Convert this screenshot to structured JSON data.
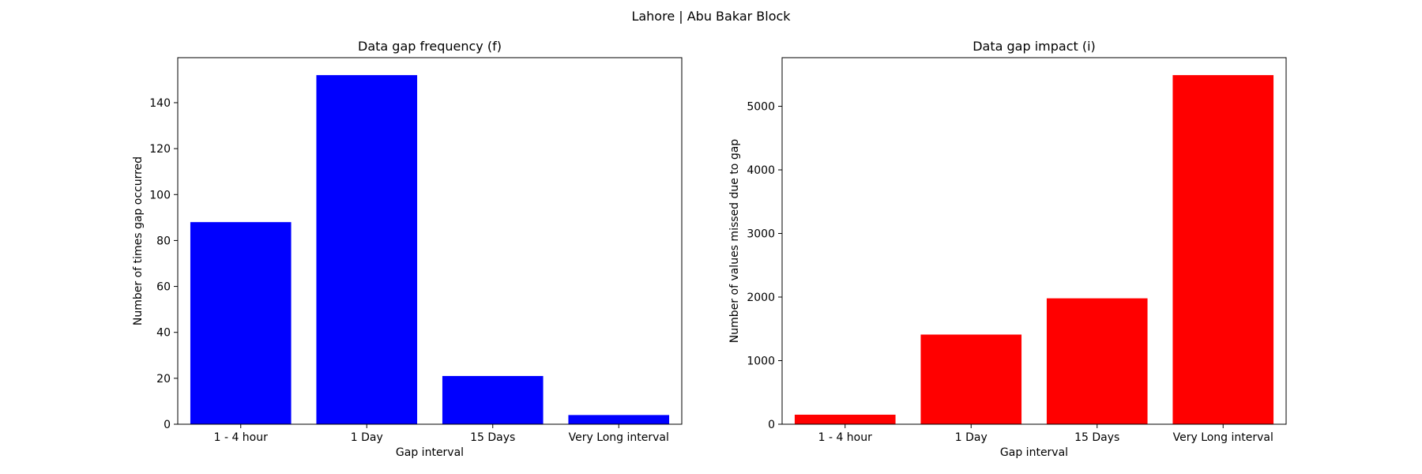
{
  "figure": {
    "suptitle": "Lahore | Abu Bakar Block"
  },
  "chart_data": [
    {
      "type": "bar",
      "title": "Data gap frequency (f)",
      "xlabel": "Gap interval",
      "ylabel": "Number of times gap occurred",
      "categories": [
        "1 - 4 hour",
        "1 Day",
        "15 Days",
        "Very Long interval"
      ],
      "values": [
        88,
        152,
        21,
        4
      ],
      "ylim": [
        0,
        159.6
      ],
      "yticks": [
        0,
        20,
        40,
        60,
        80,
        100,
        120,
        140
      ],
      "color": "#0000ff",
      "grid": false,
      "legend": "none"
    },
    {
      "type": "bar",
      "title": "Data gap impact (i)",
      "xlabel": "Gap interval",
      "ylabel": "Number of values missed due to gap",
      "categories": [
        "1 - 4 hour",
        "1 Day",
        "15 Days",
        "Very Long interval"
      ],
      "values": [
        150,
        1410,
        1980,
        5490
      ],
      "ylim": [
        0,
        5764.5
      ],
      "yticks": [
        0,
        1000,
        2000,
        3000,
        4000,
        5000
      ],
      "color": "#ff0000",
      "grid": false,
      "legend": "none"
    }
  ]
}
